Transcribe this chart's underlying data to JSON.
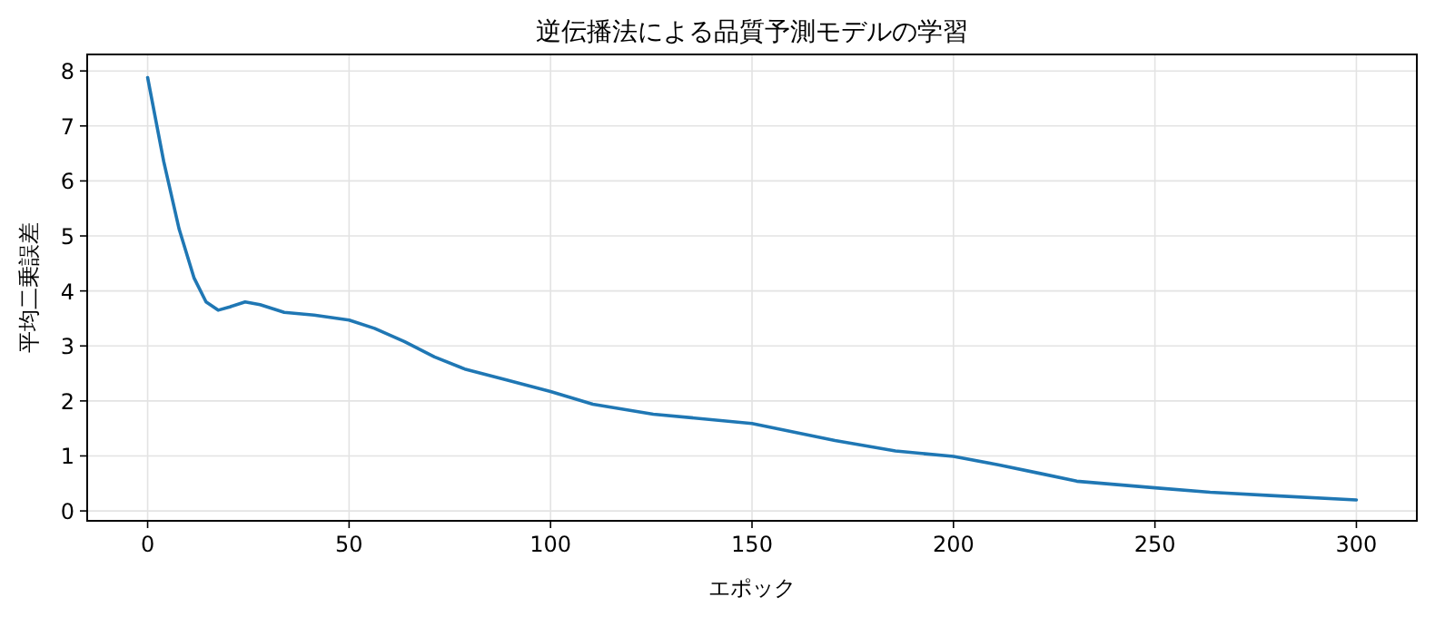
{
  "chart_data": {
    "type": "line",
    "title": "逆伝播法による品質予測モデルの学習",
    "xlabel": "エポック",
    "ylabel": "平均二乗誤差",
    "x": [
      0,
      4,
      7.8,
      11.5,
      14.5,
      17.5,
      20.4,
      24.2,
      27.9,
      33.9,
      41.3,
      50,
      56.3,
      63.7,
      71.2,
      78.7,
      89.1,
      100,
      110.5,
      125.5,
      150,
      170.6,
      185.6,
      200,
      211.1,
      221.6,
      230.6,
      250,
      263.7,
      278.7,
      300
    ],
    "series": [
      {
        "color": "#1f77b4",
        "values": [
          7.88,
          6.35,
          5.13,
          4.24,
          3.8,
          3.65,
          3.71,
          3.8,
          3.75,
          3.61,
          3.56,
          3.47,
          3.32,
          3.08,
          2.8,
          2.58,
          2.38,
          2.17,
          1.94,
          1.76,
          1.59,
          1.28,
          1.09,
          0.99,
          0.84,
          0.68,
          0.54,
          0.42,
          0.34,
          0.28,
          0.2
        ]
      }
    ],
    "xlim": [
      -15,
      315
    ],
    "ylim": [
      -0.18,
      8.3
    ],
    "xticks": [
      0,
      50,
      100,
      150,
      200,
      250,
      300
    ],
    "yticks": [
      0,
      1,
      2,
      3,
      4,
      5,
      6,
      7,
      8
    ],
    "grid": true
  }
}
